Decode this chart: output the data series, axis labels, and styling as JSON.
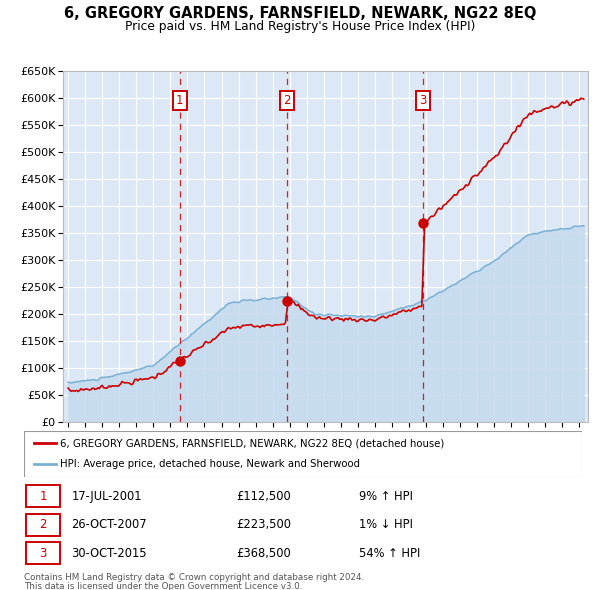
{
  "title": "6, GREGORY GARDENS, FARNSFIELD, NEWARK, NG22 8EQ",
  "subtitle": "Price paid vs. HM Land Registry's House Price Index (HPI)",
  "ylim": [
    0,
    650000
  ],
  "yticks": [
    0,
    50000,
    100000,
    150000,
    200000,
    250000,
    300000,
    350000,
    400000,
    450000,
    500000,
    550000,
    600000,
    650000
  ],
  "xlim_start": 1994.7,
  "xlim_end": 2025.5,
  "background_color": "#dce8f5",
  "grid_color": "#ffffff",
  "sale_color": "#cc0000",
  "hpi_color": "#7ab0d4",
  "hpi_fill_color": "#c5daee",
  "marker_color": "#cc0000",
  "vline_color": "#cc0000",
  "sale_points": [
    {
      "date_year": 2001.54,
      "price": 112500,
      "label": "1"
    },
    {
      "date_year": 2007.82,
      "price": 223500,
      "label": "2"
    },
    {
      "date_year": 2015.83,
      "price": 368500,
      "label": "3"
    }
  ],
  "numbered_box_color": "#cc0000",
  "legend_entries": [
    "6, GREGORY GARDENS, FARNSFIELD, NEWARK, NG22 8EQ (detached house)",
    "HPI: Average price, detached house, Newark and Sherwood"
  ],
  "table_rows": [
    {
      "num": "1",
      "date": "17-JUL-2001",
      "price": "£112,500",
      "pct": "9% ↑ HPI"
    },
    {
      "num": "2",
      "date": "26-OCT-2007",
      "price": "£223,500",
      "pct": "1% ↓ HPI"
    },
    {
      "num": "3",
      "date": "30-OCT-2015",
      "price": "£368,500",
      "pct": "54% ↑ HPI"
    }
  ],
  "footnote1": "Contains HM Land Registry data © Crown copyright and database right 2024.",
  "footnote2": "This data is licensed under the Open Government Licence v3.0."
}
